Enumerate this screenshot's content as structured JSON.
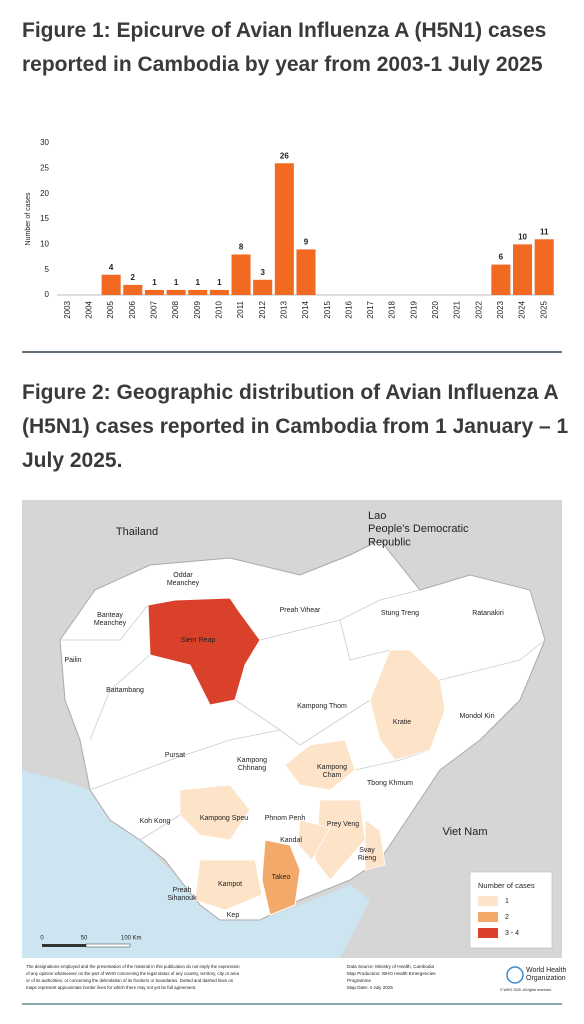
{
  "figure1_title": "Figure 1:  Epicurve of Avian Influenza A (H5N1) cases reported in Cambodia by year from 2003-1 July 2025",
  "chart_data": {
    "type": "bar",
    "y_label": "Number of cases",
    "categories": [
      "2003",
      "2004",
      "2005",
      "2006",
      "2007",
      "2008",
      "2009",
      "2010",
      "2011",
      "2012",
      "2013",
      "2014",
      "2015",
      "2016",
      "2017",
      "2018",
      "2019",
      "2020",
      "2021",
      "2022",
      "2023",
      "2024",
      "2025"
    ],
    "values": [
      0,
      0,
      4,
      2,
      1,
      1,
      1,
      1,
      8,
      3,
      26,
      9,
      0,
      0,
      0,
      0,
      0,
      0,
      0,
      0,
      6,
      10,
      11
    ],
    "color": "#f26a21",
    "ylim": [
      0,
      30
    ],
    "yticks": [
      0,
      5,
      10,
      15,
      20,
      25,
      30
    ],
    "grid": false
  },
  "figure2_title": "Figure 2: Geographic distribution of Avian Influenza A (H5N1) cases reported in Cambodia from 1 January – 1 July 2025.",
  "map": {
    "countries": [
      {
        "lines": [
          "Thailand"
        ]
      },
      {
        "lines": [
          "Lao",
          "People's Democratic",
          "Republic"
        ]
      },
      {
        "lines": [
          "Viet Nam"
        ]
      }
    ],
    "provinces": [
      {
        "lines": [
          "Oddar",
          "Meanchey"
        ]
      },
      {
        "lines": [
          "Banteay",
          "Meanchey"
        ]
      },
      {
        "lines": [
          "Siem Reap"
        ]
      },
      {
        "lines": [
          "Preah Vihear"
        ]
      },
      {
        "lines": [
          "Stung Treng"
        ]
      },
      {
        "lines": [
          "Ratanakiri"
        ]
      },
      {
        "lines": [
          "Pailin"
        ]
      },
      {
        "lines": [
          "Battambang"
        ]
      },
      {
        "lines": [
          "Kampong Thom"
        ]
      },
      {
        "lines": [
          "Kratie"
        ]
      },
      {
        "lines": [
          "Mondol Kiri"
        ]
      },
      {
        "lines": [
          "Pursat"
        ]
      },
      {
        "lines": [
          "Kampong",
          "Chhnang"
        ]
      },
      {
        "lines": [
          "Kampong",
          "Cham"
        ]
      },
      {
        "lines": [
          "Tbong Khmum"
        ]
      },
      {
        "lines": [
          "Koh Kong"
        ]
      },
      {
        "lines": [
          "Kampong Speu"
        ]
      },
      {
        "lines": [
          "Phnom Penh"
        ]
      },
      {
        "lines": [
          "Prey Veng"
        ]
      },
      {
        "lines": [
          "Kandal"
        ]
      },
      {
        "lines": [
          "Svay",
          "Rieng"
        ]
      },
      {
        "lines": [
          "Kampot"
        ]
      },
      {
        "lines": [
          "Takeo"
        ]
      },
      {
        "lines": [
          "Preah",
          "Sihanouk"
        ]
      },
      {
        "lines": [
          "Kep"
        ]
      }
    ],
    "legend": {
      "title": "Number of cases",
      "items": [
        "1",
        "2",
        "3 - 4"
      ]
    },
    "scale": [
      "0",
      "50",
      "100",
      "Km"
    ],
    "disclaimer": [
      "The designations employed and the presentation of the material in this publication do not imply the expression",
      "of any opinion whatsoever on the part of WHO concerning the legal status of any country, territory, city or area",
      "or of its authorities, or concerning the delimitation of its frontiers or boundaries. Dotted and dashed lines on",
      "maps represent approximate border lines for which there may not yet be full agreement."
    ],
    "source": [
      "Data Source: Ministry of Health, Cambodia",
      "Map Production: WHO Health Emergencies",
      "Programme",
      "Map Date: 4 July 2025"
    ],
    "org": [
      "World Health",
      "Organization"
    ],
    "copyright": "© WHO 2025. All rights reserved."
  }
}
